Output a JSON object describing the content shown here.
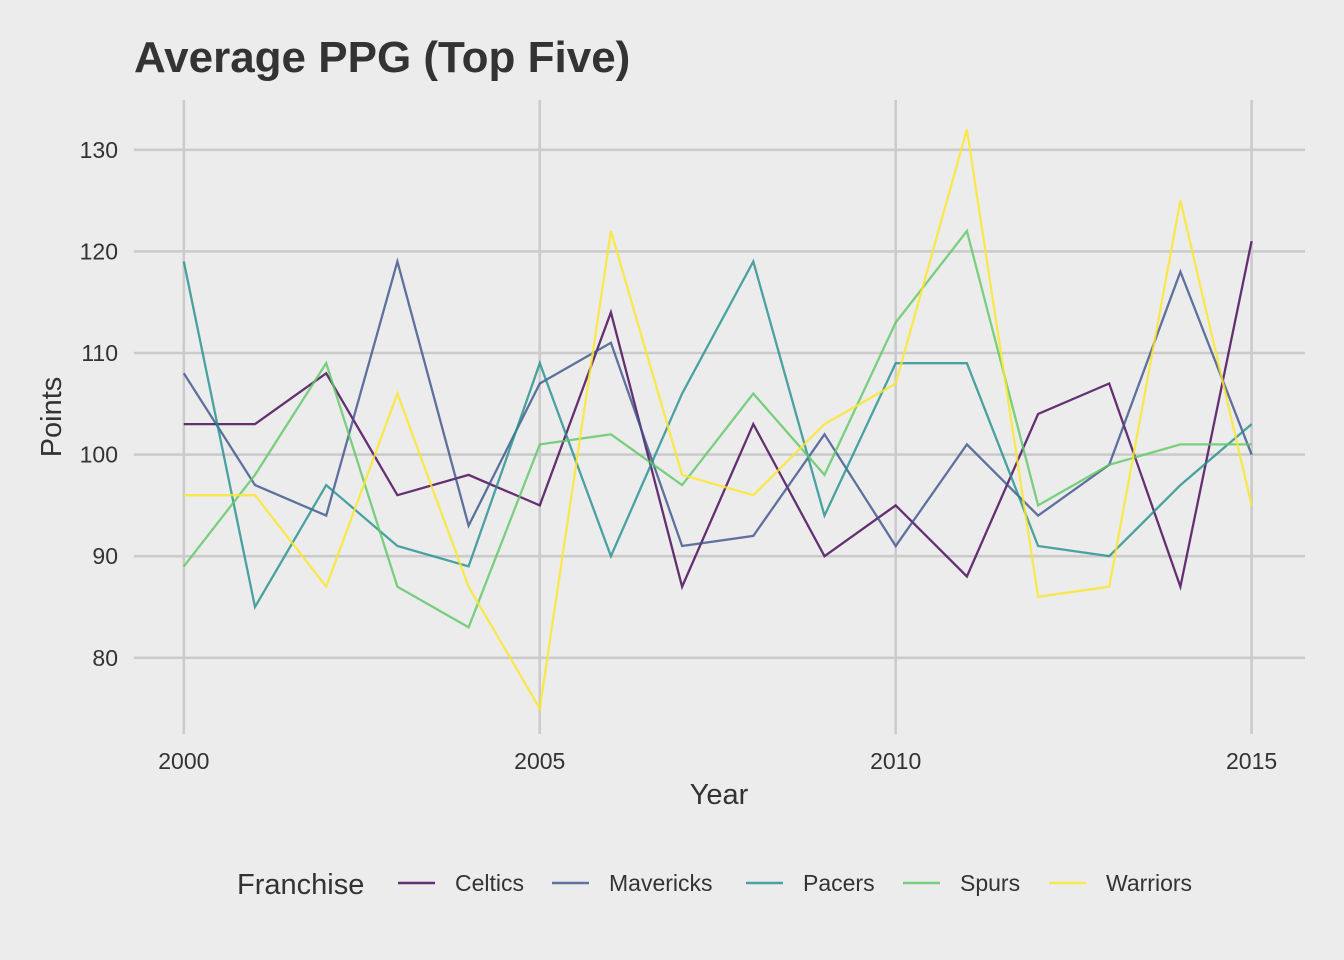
{
  "chart_data": {
    "type": "line",
    "title": "Average PPG (Top Five)",
    "xlabel": "Year",
    "ylabel": "Points",
    "x": [
      2000,
      2001,
      2002,
      2003,
      2004,
      2005,
      2006,
      2007,
      2008,
      2009,
      2010,
      2011,
      2012,
      2013,
      2014,
      2015
    ],
    "xticks": [
      2000,
      2005,
      2010,
      2015
    ],
    "yticks": [
      80,
      90,
      100,
      110,
      120,
      130
    ],
    "xlim": [
      1999.3,
      2015.75
    ],
    "ylim": [
      72.5,
      134.9
    ],
    "grid": true,
    "legend": {
      "title": "Franchise",
      "placement": "bottom"
    },
    "series": [
      {
        "name": "Celtics",
        "color": "#440154",
        "values": [
          103,
          103,
          108,
          96,
          98,
          95,
          114,
          87,
          103,
          90,
          95,
          88,
          104,
          107,
          87,
          121
        ]
      },
      {
        "name": "Mavericks",
        "color": "#3b528b",
        "values": [
          108,
          97,
          94,
          119,
          93,
          107,
          111,
          91,
          92,
          102,
          91,
          101,
          94,
          99,
          118,
          100
        ]
      },
      {
        "name": "Pacers",
        "color": "#21908c",
        "values": [
          119,
          85,
          97,
          91,
          89,
          109,
          90,
          106,
          119,
          94,
          109,
          109,
          91,
          90,
          97,
          103
        ]
      },
      {
        "name": "Spurs",
        "color": "#5dc863",
        "values": [
          89,
          98,
          109,
          87,
          83,
          101,
          102,
          97,
          106,
          98,
          113,
          122,
          95,
          99,
          101,
          101
        ]
      },
      {
        "name": "Warriors",
        "color": "#fde725",
        "values": [
          96,
          96,
          87,
          106,
          87,
          75,
          122,
          98,
          96,
          103,
          107,
          132,
          86,
          87,
          125,
          95
        ]
      }
    ]
  }
}
